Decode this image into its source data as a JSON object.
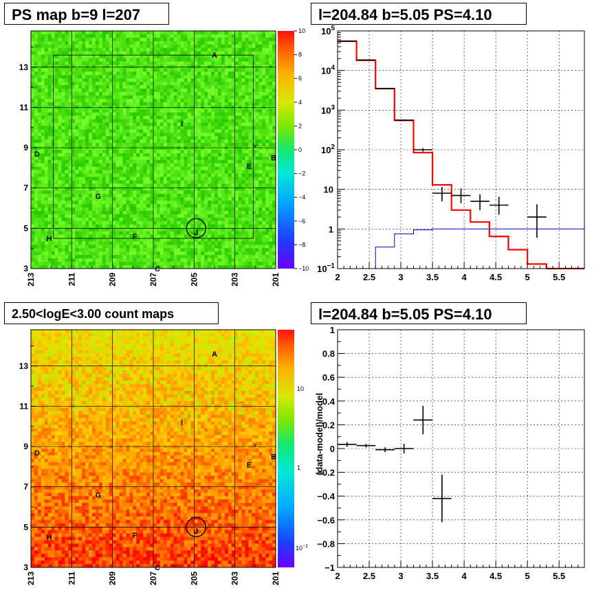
{
  "colors": {
    "map1_base": "#2ef000",
    "hist_model": "#ff0000",
    "hist_bkg": "#0000cc",
    "axis": "#000000"
  },
  "panels": {
    "tl": {
      "title": "PS map b=9 l=207"
    },
    "tr": {
      "title": "l=204.84 b=5.05 PS=4.10"
    },
    "bl": {
      "title": "2.50<logE<3.00 count maps"
    },
    "br": {
      "title": "l=204.84 b=5.05 PS=4.10"
    }
  },
  "map_common": {
    "x_ticks": [
      "213",
      "211",
      "209",
      "207",
      "205",
      "203",
      "201"
    ],
    "y_ticks": [
      "3",
      "5",
      "7",
      "9",
      "11",
      "13"
    ],
    "sources": [
      {
        "label": "A",
        "l": 204.0,
        "b": 13.6
      },
      {
        "label": "B",
        "l": 201.1,
        "b": 8.5
      },
      {
        "label": "C",
        "l": 206.8,
        "b": 3.0
      },
      {
        "label": "D",
        "l": 212.7,
        "b": 8.7
      },
      {
        "label": "E",
        "l": 202.3,
        "b": 8.1
      },
      {
        "label": "F",
        "l": 207.9,
        "b": 4.6
      },
      {
        "label": "G",
        "l": 209.7,
        "b": 6.6
      },
      {
        "label": "H",
        "l": 212.1,
        "b": 4.5
      },
      {
        "label": "I",
        "l": 205.6,
        "b": 10.2
      },
      {
        "label": "J",
        "l": 204.9,
        "b": 4.8
      }
    ]
  },
  "tl_colorbar": {
    "ticks": [
      "10",
      "8",
      "6",
      "4",
      "2",
      "0",
      "−2",
      "−4",
      "−6",
      "−8",
      "−10"
    ]
  },
  "bl_colorbar": {
    "ticks": [
      "10",
      "1",
      "10"
    ],
    "sup": "−1"
  },
  "chart_data": [
    {
      "panel": "top-right",
      "type": "line",
      "title": "l=204.84 b=5.05 PS=4.10",
      "xlim": [
        2.0,
        5.9
      ],
      "ylim": [
        0.1,
        100000
      ],
      "log_y": true,
      "x_ticks": [
        "2",
        "2.5",
        "3",
        "3.5",
        "4",
        "4.5",
        "5",
        "5.5"
      ],
      "y_ticks": [
        "10^-1",
        "1",
        "10",
        "10^2",
        "10^3",
        "10^4",
        "10^5"
      ],
      "grid": true,
      "series": [
        {
          "style": "step",
          "edges": [
            2.0,
            2.3,
            2.6,
            2.9,
            3.2,
            3.5,
            3.8,
            4.1,
            4.4,
            4.7,
            5.0,
            5.3,
            5.6,
            5.9
          ],
          "values": [
            55000,
            18000,
            3500,
            550,
            85,
            13,
            3.0,
            1.5,
            0.65,
            0.3,
            0.13,
            0.1,
            0.1
          ]
        },
        {
          "style": "step",
          "edges": [
            2.6,
            2.9,
            3.2,
            3.5,
            3.8,
            4.1,
            4.4,
            4.7,
            5.0,
            5.3,
            5.6,
            5.9
          ],
          "values": [
            0.35,
            0.75,
            0.95,
            1.0,
            1.0,
            1.0,
            1.0,
            1.0,
            1.0,
            1.0,
            1.0
          ]
        },
        {
          "style": "errorbar",
          "x": [
            2.15,
            2.45,
            2.75,
            3.05,
            3.35,
            3.65,
            3.95,
            4.25,
            4.55,
            5.15
          ],
          "y": [
            55000,
            18500,
            3500,
            560,
            100,
            8,
            7,
            5,
            4,
            2
          ],
          "x_err": 0.15,
          "y_lo": [
            54000,
            18000,
            3400,
            540,
            90,
            5,
            4.5,
            3,
            2.3,
            0.6
          ],
          "y_hi": [
            56000,
            19000,
            3600,
            580,
            110,
            11.5,
            10.5,
            7.5,
            6.5,
            4.2
          ]
        }
      ]
    },
    {
      "panel": "bottom-right",
      "type": "scatter",
      "title": "l=204.84 b=5.05 PS=4.10",
      "ylabel": "(data-model)/model",
      "xlim": [
        2.0,
        5.9
      ],
      "ylim": [
        -1.0,
        1.0
      ],
      "x_ticks": [
        "2",
        "2.5",
        "3",
        "3.5",
        "4",
        "4.5",
        "5",
        "5.5"
      ],
      "y_ticks": [
        "−1",
        "−0.8",
        "−0.6",
        "−0.4",
        "−0.2",
        "0",
        "0.2",
        "0.4",
        "0.6",
        "0.8",
        "1"
      ],
      "grid": true,
      "series": [
        {
          "style": "errorbar",
          "x": [
            2.15,
            2.45,
            2.75,
            3.05,
            3.35,
            3.65
          ],
          "y": [
            0.035,
            0.025,
            -0.01,
            0.0,
            0.24,
            -0.42
          ],
          "x_err": 0.15,
          "y_err": [
            0.02,
            0.015,
            0.02,
            0.04,
            0.12,
            0.2
          ]
        }
      ]
    }
  ]
}
